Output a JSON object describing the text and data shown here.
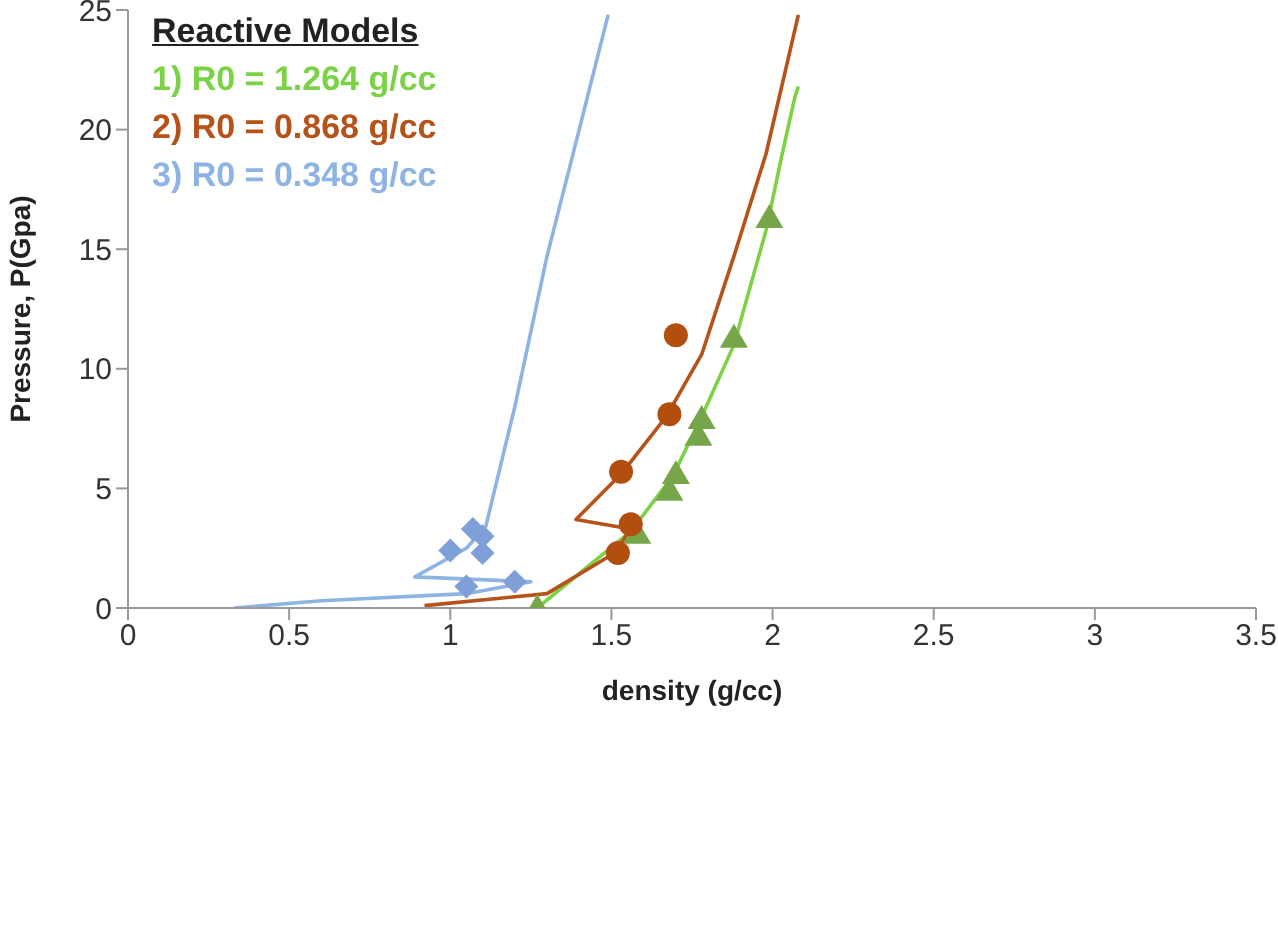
{
  "chart_data": {
    "type": "line",
    "xlabel": "density (g/cc)",
    "ylabel": "Pressure, P(Gpa)",
    "legend_title": "Reactive Models",
    "legend": "top left",
    "grid": false,
    "xlim": [
      0,
      3.5
    ],
    "xticks": [
      0,
      0.5,
      1,
      1.5,
      2,
      2.5,
      3,
      3.5
    ],
    "ylim": [
      0,
      25
    ],
    "yticks": [
      0,
      5,
      10,
      15,
      20,
      25
    ],
    "series": [
      {
        "name": "1) R0 = 1.264 g/cc",
        "type": "line",
        "marker": "none",
        "color": "#7cd246",
        "x": [
          1.27,
          1.56,
          1.69,
          1.78,
          1.88,
          1.98,
          2.03,
          2.07,
          2.08
        ],
        "values": [
          0,
          3.2,
          5.5,
          8,
          11,
          15.8,
          19,
          21.4,
          21.8
        ]
      },
      {
        "name": "2) R0 = 0.868 g/cc",
        "type": "line",
        "marker": "none",
        "color": "#b5531a",
        "x": [
          0.92,
          1.3,
          1.51,
          1.56,
          1.39,
          1.53,
          1.67,
          1.78,
          1.88,
          1.98,
          2.08
        ],
        "values": [
          0.1,
          0.6,
          2.3,
          3.3,
          3.7,
          5.6,
          8,
          10.6,
          14.7,
          19,
          24.8
        ]
      },
      {
        "name": "3) R0 = 0.348 g/cc",
        "type": "line",
        "marker": "none",
        "color": "#8eb4e3",
        "x": [
          0.33,
          0.6,
          1.05,
          1.25,
          0.89,
          1.05,
          1.11,
          1.2,
          1.3,
          1.4,
          1.49
        ],
        "values": [
          0,
          0.3,
          0.6,
          1.1,
          1.3,
          2.5,
          3.4,
          8.4,
          14.7,
          20,
          24.8
        ]
      },
      {
        "type": "scatter",
        "marker": "triangle",
        "color": "#77a64a",
        "x": [
          1.27,
          1.58,
          1.68,
          1.7,
          1.77,
          1.78,
          1.88,
          1.99
        ],
        "values": [
          0,
          3.1,
          4.9,
          5.6,
          7.2,
          7.9,
          11.3,
          16.3
        ]
      },
      {
        "type": "scatter",
        "marker": "circle",
        "color": "#b34f0e",
        "x": [
          1.52,
          1.56,
          1.53,
          1.68,
          1.7
        ],
        "values": [
          2.3,
          3.5,
          5.7,
          8.1,
          11.4
        ]
      },
      {
        "type": "scatter",
        "marker": "diamond",
        "color": "#7f9fd8",
        "x": [
          1.07,
          1.1,
          1.0,
          1.1,
          1.05,
          1.2
        ],
        "values": [
          3.3,
          3.0,
          2.4,
          2.3,
          0.9,
          1.1
        ]
      }
    ]
  }
}
